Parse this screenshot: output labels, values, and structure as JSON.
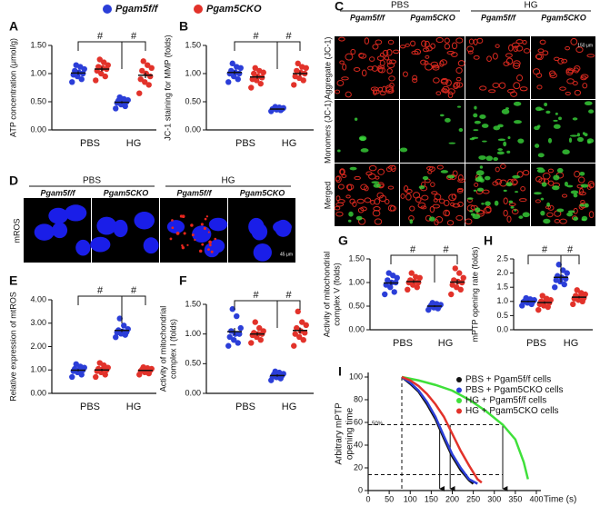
{
  "legend": [
    {
      "name": "Pgam5f/f",
      "color": "#2b3ed8"
    },
    {
      "name": "Pgam5CKO",
      "color": "#e2322a"
    }
  ],
  "chart_data": [
    {
      "type": "dot",
      "panel": "A",
      "y_label": [
        "ATP concentration (μmol/g)"
      ],
      "categories": [
        "PBS",
        "HG"
      ],
      "ylim": [
        0,
        1.5
      ],
      "yticks": [
        {
          "value": 0,
          "label": "0.00"
        },
        {
          "value": 0.5,
          "label": "0.50"
        },
        {
          "value": 1,
          "label": "1.00"
        },
        {
          "value": 1.5,
          "label": "1.50"
        }
      ],
      "annotations": [
        "#",
        "#"
      ],
      "series": [
        {
          "color": "#2b3ed8",
          "values": [
            [
              0.85,
              0.9,
              0.95,
              0.98,
              1.0,
              1.02,
              1.05,
              1.08,
              1.12,
              1.15
            ],
            [
              0.38,
              0.42,
              0.45,
              0.48,
              0.5,
              0.5,
              0.52,
              0.53,
              0.55,
              0.58
            ]
          ],
          "means": [
            1.01,
            0.49
          ],
          "sems": [
            0.03,
            0.02
          ]
        },
        {
          "color": "#e2322a",
          "values": [
            [
              0.88,
              0.95,
              1.0,
              1.05,
              1.08,
              1.1,
              1.12,
              1.15,
              1.2,
              1.25
            ],
            [
              0.65,
              0.8,
              0.85,
              0.9,
              0.95,
              1.0,
              1.05,
              1.1,
              1.15,
              1.22
            ]
          ],
          "means": [
            1.08,
            0.97
          ],
          "sems": [
            0.04,
            0.05
          ]
        }
      ]
    },
    {
      "type": "dot",
      "panel": "B",
      "y_label": [
        "JC-1 staining for MMP (folds)"
      ],
      "categories": [
        "PBS",
        "HG"
      ],
      "ylim": [
        0,
        1.5
      ],
      "yticks": [
        {
          "value": 0,
          "label": "0.00"
        },
        {
          "value": 0.5,
          "label": "0.50"
        },
        {
          "value": 1,
          "label": "1.00"
        },
        {
          "value": 1.5,
          "label": "1.50"
        }
      ],
      "annotations": [
        "#",
        "#"
      ],
      "series": [
        {
          "color": "#2b3ed8",
          "values": [
            [
              0.85,
              0.9,
              0.95,
              1.0,
              1.0,
              1.02,
              1.05,
              1.1,
              1.12,
              1.18
            ],
            [
              0.33,
              0.35,
              0.36,
              0.37,
              0.37,
              0.38,
              0.38,
              0.39,
              0.4,
              0.41
            ]
          ],
          "means": [
            1.02,
            0.37
          ],
          "sems": [
            0.03,
            0.01
          ]
        },
        {
          "color": "#e2322a",
          "values": [
            [
              0.75,
              0.82,
              0.88,
              0.9,
              0.93,
              0.95,
              1.0,
              1.02,
              1.05,
              1.1
            ],
            [
              0.8,
              0.88,
              0.92,
              0.95,
              1.0,
              1.02,
              1.05,
              1.1,
              1.12,
              1.18
            ]
          ],
          "means": [
            0.94,
            1.0
          ],
          "sems": [
            0.03,
            0.04
          ]
        }
      ]
    },
    {
      "type": "dot",
      "panel": "E",
      "y_label": [
        "Relative expression of mtROS"
      ],
      "categories": [
        "PBS",
        "HG"
      ],
      "ylim": [
        0,
        4
      ],
      "yticks": [
        {
          "value": 0,
          "label": "0.00"
        },
        {
          "value": 1,
          "label": "1.00"
        },
        {
          "value": 2,
          "label": "2.00"
        },
        {
          "value": 3,
          "label": "3.00"
        },
        {
          "value": 4,
          "label": "4.00"
        }
      ],
      "annotations": [
        "#",
        "#"
      ],
      "series": [
        {
          "color": "#2b3ed8",
          "values": [
            [
              0.7,
              0.8,
              0.9,
              0.95,
              1.0,
              1.0,
              1.05,
              1.1,
              1.15,
              1.25
            ],
            [
              2.4,
              2.5,
              2.55,
              2.6,
              2.62,
              2.65,
              2.7,
              2.75,
              2.9,
              3.2
            ]
          ],
          "means": [
            0.99,
            2.69
          ],
          "sems": [
            0.05,
            0.07
          ]
        },
        {
          "color": "#e2322a",
          "values": [
            [
              0.7,
              0.8,
              0.9,
              0.95,
              1.0,
              1.02,
              1.05,
              1.1,
              1.2,
              1.3
            ],
            [
              0.8,
              0.85,
              0.9,
              0.95,
              0.98,
              1.0,
              1.02,
              1.05,
              1.08,
              1.12
            ]
          ],
          "means": [
            1.0,
            0.98
          ],
          "sems": [
            0.05,
            0.03
          ]
        }
      ]
    },
    {
      "type": "dot",
      "panel": "F",
      "y_label": [
        "Activity of mitochondrial",
        "complex I (folds)"
      ],
      "categories": [
        "PBS",
        "HG"
      ],
      "ylim": [
        0,
        1.5
      ],
      "yticks": [
        {
          "value": 0,
          "label": "0.00"
        },
        {
          "value": 0.5,
          "label": "0.50"
        },
        {
          "value": 1,
          "label": "1.00"
        },
        {
          "value": 1.5,
          "label": "1.50"
        }
      ],
      "annotations": [
        "#",
        "#"
      ],
      "series": [
        {
          "color": "#2b3ed8",
          "values": [
            [
              0.8,
              0.85,
              0.9,
              0.95,
              1.0,
              1.0,
              1.05,
              1.1,
              1.3,
              1.42
            ],
            [
              0.22,
              0.25,
              0.27,
              0.28,
              0.3,
              0.3,
              0.32,
              0.33,
              0.35,
              0.37
            ]
          ],
          "means": [
            1.04,
            0.3
          ],
          "sems": [
            0.06,
            0.02
          ]
        },
        {
          "color": "#e2322a",
          "values": [
            [
              0.85,
              0.9,
              0.95,
              0.98,
              1.0,
              1.0,
              1.02,
              1.05,
              1.1,
              1.2
            ],
            [
              0.8,
              0.9,
              0.95,
              1.0,
              1.02,
              1.05,
              1.1,
              1.15,
              1.2,
              1.38
            ]
          ],
          "means": [
            1.0,
            1.06
          ],
          "sems": [
            0.03,
            0.05
          ]
        }
      ]
    },
    {
      "type": "dot",
      "panel": "G",
      "y_label": [
        "Activity of mitochondrial",
        "complex V (folds)"
      ],
      "categories": [
        "PBS",
        "HG"
      ],
      "ylim": [
        0,
        1.5
      ],
      "yticks": [
        {
          "value": 0,
          "label": "0.00"
        },
        {
          "value": 0.5,
          "label": "0.50"
        },
        {
          "value": 1,
          "label": "1.00"
        },
        {
          "value": 1.5,
          "label": "1.50"
        }
      ],
      "annotations": [
        "#",
        "#"
      ],
      "series": [
        {
          "color": "#2b3ed8",
          "values": [
            [
              0.75,
              0.8,
              0.9,
              0.95,
              1.0,
              1.0,
              1.05,
              1.1,
              1.15,
              1.2
            ],
            [
              0.42,
              0.45,
              0.47,
              0.48,
              0.5,
              0.5,
              0.52,
              0.53,
              0.55,
              0.57
            ]
          ],
          "means": [
            0.99,
            0.5
          ],
          "sems": [
            0.04,
            0.02
          ]
        },
        {
          "color": "#e2322a",
          "values": [
            [
              0.85,
              0.9,
              0.95,
              1.0,
              1.0,
              1.02,
              1.05,
              1.1,
              1.12,
              1.2
            ],
            [
              0.75,
              0.85,
              0.9,
              0.95,
              1.0,
              1.02,
              1.05,
              1.1,
              1.2,
              1.3
            ]
          ],
          "means": [
            1.02,
            1.01
          ],
          "sems": [
            0.03,
            0.05
          ]
        }
      ]
    },
    {
      "type": "dot",
      "panel": "H",
      "y_label": [
        "mPTP opening rate (folds)"
      ],
      "categories": [
        "PBS",
        "HG"
      ],
      "ylim": [
        0,
        2.5
      ],
      "yticks": [
        {
          "value": 0,
          "label": "0.0"
        },
        {
          "value": 0.5,
          "label": "0.5"
        },
        {
          "value": 1,
          "label": "1.0"
        },
        {
          "value": 1.5,
          "label": "1.5"
        },
        {
          "value": 2,
          "label": "2.0"
        },
        {
          "value": 2.5,
          "label": "2.5"
        }
      ],
      "annotations": [
        "#",
        "#"
      ],
      "series": [
        {
          "color": "#2b3ed8",
          "values": [
            [
              0.85,
              0.9,
              0.95,
              0.98,
              1.0,
              1.0,
              1.02,
              1.05,
              1.08,
              1.12
            ],
            [
              1.5,
              1.6,
              1.7,
              1.75,
              1.8,
              1.85,
              1.9,
              2.0,
              2.1,
              2.3
            ]
          ],
          "means": [
            1.0,
            1.85
          ],
          "sems": [
            0.03,
            0.07
          ]
        },
        {
          "color": "#e2322a",
          "values": [
            [
              0.7,
              0.8,
              0.85,
              0.9,
              0.95,
              1.0,
              1.0,
              1.05,
              1.1,
              1.2
            ],
            [
              0.9,
              1.0,
              1.05,
              1.1,
              1.12,
              1.15,
              1.2,
              1.25,
              1.3,
              1.4
            ]
          ],
          "means": [
            0.96,
            1.15
          ],
          "sems": [
            0.04,
            0.04
          ]
        }
      ]
    },
    {
      "type": "line",
      "panel": "I",
      "y_label": [
        "Arbitrary mPTP",
        "opening time"
      ],
      "x_label": "Time (s)",
      "xlim": [
        0,
        400
      ],
      "xticks": [
        0,
        50,
        100,
        150,
        200,
        250,
        300,
        350,
        400
      ],
      "ylim": [
        0,
        100
      ],
      "yticks": [
        0,
        20,
        40,
        60,
        80,
        100
      ],
      "reference_lines": {
        "y": [
          58,
          14
        ],
        "x": [
          80
        ]
      },
      "reference_label": "50%",
      "arrows_x": [
        170,
        195,
        320
      ],
      "series": [
        {
          "name": "PBS + Pgam5f/f cells",
          "color": "#111111",
          "x": [
            80,
            100,
            120,
            140,
            160,
            180,
            200,
            220,
            240,
            250
          ],
          "values": [
            100,
            94,
            87,
            76,
            63,
            46,
            30,
            18,
            9,
            6
          ]
        },
        {
          "name": "PBS + Pgam5CKO cells",
          "color": "#2b3ed8",
          "x": [
            80,
            100,
            120,
            140,
            160,
            180,
            200,
            220,
            240,
            260
          ],
          "values": [
            100,
            95,
            88,
            78,
            65,
            48,
            32,
            20,
            10,
            6
          ]
        },
        {
          "name": "HG + Pgam5f/f cells",
          "color": "#3fe03a",
          "x": [
            80,
            120,
            160,
            200,
            240,
            280,
            320,
            350,
            370,
            380
          ],
          "values": [
            100,
            97,
            93,
            88,
            80,
            70,
            58,
            45,
            25,
            10
          ]
        },
        {
          "name": "HG + Pgam5CKO cells",
          "color": "#e2322a",
          "x": [
            80,
            100,
            120,
            140,
            160,
            180,
            200,
            220,
            240,
            260,
            270
          ],
          "values": [
            100,
            97,
            92,
            85,
            76,
            65,
            50,
            35,
            22,
            10,
            7
          ]
        }
      ]
    }
  ],
  "images": {
    "C": {
      "panel": "C",
      "groups": [
        "PBS",
        "HG"
      ],
      "columns": [
        "Pgam5f/f",
        "Pgam5CKO",
        "Pgam5f/f",
        "Pgam5CKO"
      ],
      "rows": [
        "Aggregate (JC-1)",
        "Monomers (JC-1)",
        "Merged"
      ],
      "scale_bar": "150 μm"
    },
    "D": {
      "panel": "D",
      "groups": [
        "PBS",
        "HG"
      ],
      "columns": [
        "Pgam5f/f",
        "Pgam5CKO",
        "Pgam5f/f",
        "Pgam5CKO"
      ],
      "rows": [
        "mROS"
      ],
      "scale_bar": "45 μm"
    }
  }
}
